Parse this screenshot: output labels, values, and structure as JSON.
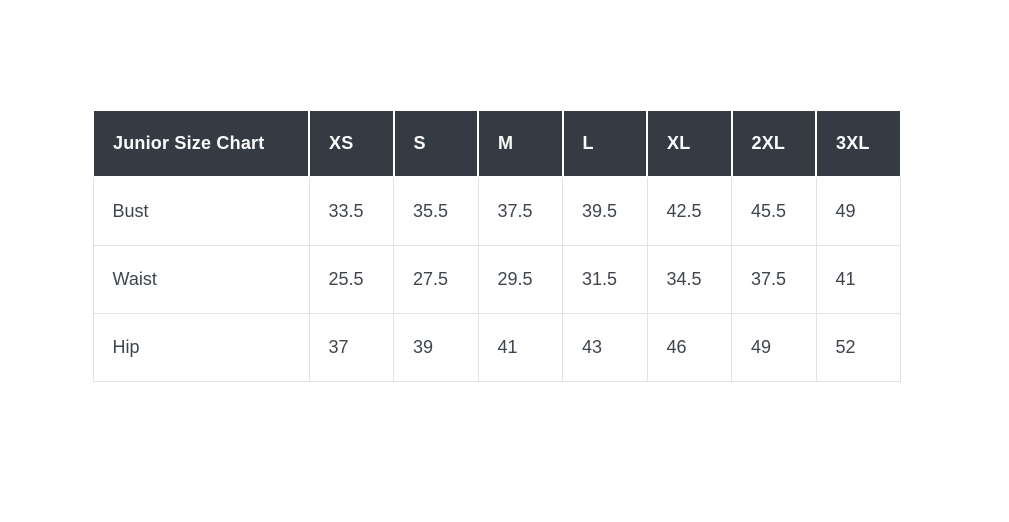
{
  "page": {
    "background": "#ffffff"
  },
  "table": {
    "header": {
      "label": "Junior Size Chart",
      "sizes": [
        "XS",
        "S",
        "M",
        "L",
        "XL",
        "2XL",
        "3XL"
      ]
    },
    "rows": [
      {
        "label": "Bust",
        "values": [
          "33.5",
          "35.5",
          "37.5",
          "39.5",
          "42.5",
          "45.5",
          "49"
        ]
      },
      {
        "label": "Waist",
        "values": [
          "25.5",
          "27.5",
          "29.5",
          "31.5",
          "34.5",
          "37.5",
          "41"
        ]
      },
      {
        "label": "Hip",
        "values": [
          "37",
          "39",
          "41",
          "43",
          "46",
          "49",
          "52"
        ]
      }
    ],
    "colors": {
      "header_bg": "#343b43",
      "header_text": "#fcfcfd",
      "body_text": "#3e454d",
      "cell_border": "#e2e2e2",
      "header_cell_gap": "#ffffff"
    }
  },
  "chart_data": {
    "type": "table",
    "title": "Junior Size Chart",
    "columns": [
      "Junior Size Chart",
      "XS",
      "S",
      "M",
      "L",
      "XL",
      "2XL",
      "3XL"
    ],
    "rows": [
      [
        "Bust",
        33.5,
        35.5,
        37.5,
        39.5,
        42.5,
        45.5,
        49
      ],
      [
        "Waist",
        25.5,
        27.5,
        29.5,
        31.5,
        34.5,
        37.5,
        41
      ],
      [
        "Hip",
        37,
        39,
        41,
        43,
        46,
        49,
        52
      ]
    ],
    "layout_hints": {
      "header_row_style": "dark-background-white-text",
      "grid": true,
      "alignment": "left"
    }
  }
}
